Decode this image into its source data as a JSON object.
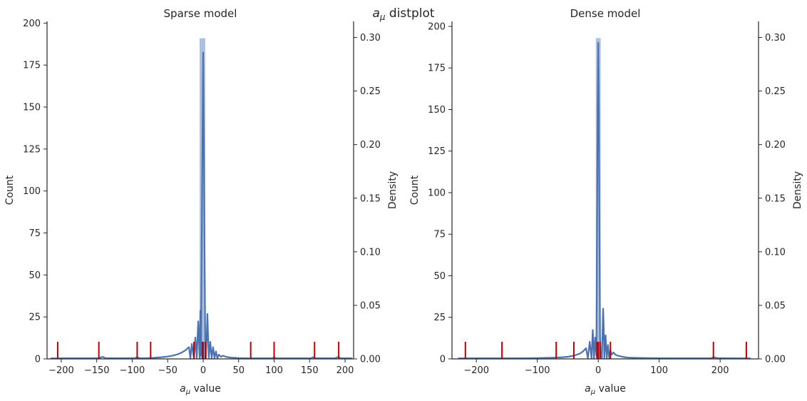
{
  "figure": {
    "suptitle_main": "a",
    "suptitle_sub": "μ",
    "suptitle_rest": " distplot"
  },
  "colors": {
    "hist_fill": "#9fb6d6",
    "kde_line": "#4c72b0",
    "rug": "#c00000",
    "axes": "#262626"
  },
  "chart_data": [
    {
      "type": "bar",
      "title": "Sparse model",
      "xlabel_main": "a",
      "xlabel_sub": "μ",
      "xlabel_rest": " value",
      "ylabel_left": "Count",
      "ylabel_right": "Density",
      "xlim": [
        -220,
        212
      ],
      "ylim_count": [
        0,
        201
      ],
      "ylim_density": [
        0,
        0.315
      ],
      "xticks": [
        -200,
        -150,
        -100,
        -50,
        0,
        50,
        100,
        150,
        200
      ],
      "xtick_labels": [
        "−200",
        "−150",
        "−100",
        "−50",
        "0",
        "50",
        "100",
        "150",
        "200"
      ],
      "yticks_count": [
        0,
        25,
        50,
        75,
        100,
        125,
        150,
        175,
        200
      ],
      "yticks_density": [
        0.0,
        0.05,
        0.1,
        0.15,
        0.2,
        0.25,
        0.3
      ],
      "ytick_density_labels": [
        "0.00",
        "0.05",
        "0.10",
        "0.15",
        "0.20",
        "0.25",
        "0.30"
      ],
      "histogram": {
        "bins": [
          [
            -5,
            3,
            191
          ]
        ]
      },
      "kde": {
        "x": [
          -215,
          -190,
          -160,
          -146,
          -142,
          -138,
          -120,
          -96,
          -93,
          -90,
          -80,
          -70,
          -60,
          -50,
          -45,
          -40,
          -35,
          -30,
          -25,
          -20,
          -18,
          -16,
          -13,
          -11,
          -9,
          -7,
          -5,
          -4,
          -3,
          -2,
          -1,
          0,
          1,
          2,
          3,
          4,
          5,
          6,
          7,
          8,
          10,
          12,
          14,
          16,
          18,
          20,
          22,
          25,
          28,
          32,
          36,
          40,
          45,
          50,
          60,
          70,
          80,
          90,
          98,
          100,
          102,
          120,
          140,
          152,
          155,
          158,
          175,
          186,
          190,
          194,
          210
        ],
        "y": [
          0.0005,
          0.0006,
          0.0006,
          0.0008,
          0.002,
          0.0008,
          0.0006,
          0.0008,
          0.0016,
          0.0008,
          0.0007,
          0.001,
          0.0015,
          0.0022,
          0.0028,
          0.0035,
          0.0045,
          0.006,
          0.008,
          0.011,
          0.0005,
          0.014,
          0.0005,
          0.02,
          0.0005,
          0.035,
          0.0008,
          0.045,
          0.003,
          0.11,
          0.2,
          0.286,
          0.2,
          0.1,
          0.01,
          0.001,
          0.02,
          0.042,
          0.02,
          0.001,
          0.016,
          0.0008,
          0.011,
          0.0008,
          0.007,
          0.0006,
          0.004,
          0.002,
          0.003,
          0.002,
          0.0015,
          0.0012,
          0.001,
          0.0008,
          0.0006,
          0.0006,
          0.0006,
          0.0006,
          0.0007,
          0.0018,
          0.0007,
          0.0006,
          0.0006,
          0.0007,
          0.0016,
          0.0007,
          0.0006,
          0.0007,
          0.0016,
          0.0007,
          0.0005
        ]
      },
      "rug": [
        -205,
        -147,
        -93,
        -74,
        -13,
        -1,
        0,
        3,
        67,
        100,
        157,
        191
      ]
    },
    {
      "type": "bar",
      "title": "Dense model",
      "xlabel_main": "a",
      "xlabel_sub": "μ",
      "xlabel_rest": " value",
      "ylabel_left": "Count",
      "ylabel_right": "Density",
      "xlim": [
        -240,
        263
      ],
      "ylim_count": [
        0,
        203
      ],
      "ylim_density": [
        0,
        0.315
      ],
      "xticks": [
        -200,
        -100,
        0,
        100,
        200
      ],
      "xtick_labels": [
        "−200",
        "−100",
        "0",
        "100",
        "200"
      ],
      "yticks_count": [
        0,
        25,
        50,
        75,
        100,
        125,
        150,
        175,
        200
      ],
      "yticks_density": [
        0.0,
        0.05,
        0.1,
        0.15,
        0.2,
        0.25,
        0.3
      ],
      "ytick_density_labels": [
        "0.00",
        "0.05",
        "0.10",
        "0.15",
        "0.20",
        "0.25",
        "0.30"
      ],
      "histogram": {
        "bins": [
          [
            -4,
            4,
            193
          ]
        ]
      },
      "kde": {
        "x": [
          -230,
          -200,
          -180,
          -160,
          -130,
          -100,
          -80,
          -70,
          -60,
          -50,
          -45,
          -40,
          -35,
          -30,
          -25,
          -20,
          -17,
          -14,
          -11,
          -9,
          -7,
          -5,
          -3,
          -2,
          -1,
          0,
          1,
          2,
          3,
          4,
          6,
          8,
          9,
          10,
          12,
          14,
          16,
          18,
          20,
          22,
          25,
          28,
          32,
          36,
          40,
          45,
          50,
          60,
          80,
          100,
          130,
          160,
          185,
          190,
          195,
          220,
          250
        ],
        "y": [
          0.0005,
          0.0006,
          0.0006,
          0.0006,
          0.0006,
          0.0008,
          0.001,
          0.0012,
          0.0015,
          0.002,
          0.0025,
          0.003,
          0.004,
          0.005,
          0.007,
          0.01,
          0.0005,
          0.016,
          0.0005,
          0.027,
          0.0005,
          0.02,
          0.003,
          0.12,
          0.23,
          0.295,
          0.23,
          0.12,
          0.02,
          0.003,
          0.0005,
          0.047,
          0.03,
          0.0005,
          0.022,
          0.0005,
          0.013,
          0.0005,
          0.008,
          0.004,
          0.006,
          0.004,
          0.003,
          0.0025,
          0.002,
          0.0015,
          0.0012,
          0.001,
          0.0008,
          0.0007,
          0.0006,
          0.0006,
          0.0007,
          0.0016,
          0.0007,
          0.0006,
          0.0005
        ]
      },
      "rug": [
        -218,
        -158,
        -69,
        -40,
        -2,
        0,
        3,
        20,
        189,
        243
      ]
    }
  ]
}
